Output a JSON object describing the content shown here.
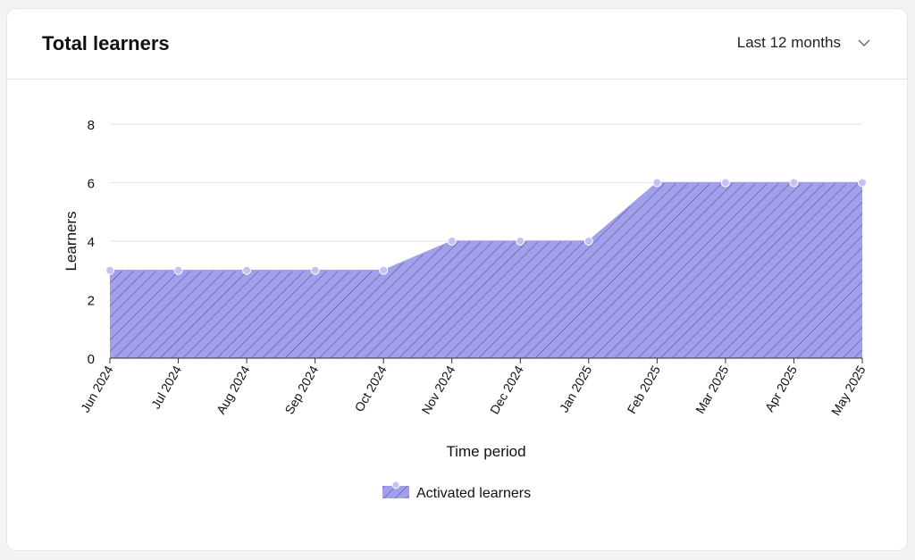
{
  "header": {
    "title": "Total learners",
    "range_selector": {
      "value": "Last 12 months",
      "icon": "chevron-down-icon"
    }
  },
  "chart_data": {
    "type": "area",
    "title": "",
    "xlabel": "Time period",
    "ylabel": "Learners",
    "ylim": [
      0,
      8
    ],
    "yticks": [
      0,
      2,
      4,
      6,
      8
    ],
    "grid": true,
    "legend_position": "bottom",
    "categories": [
      "Jun 2024",
      "Jul 2024",
      "Aug 2024",
      "Sep 2024",
      "Oct 2024",
      "Nov 2024",
      "Dec 2024",
      "Jan 2025",
      "Feb 2025",
      "Mar 2025",
      "Apr 2025",
      "May 2025"
    ],
    "series": [
      {
        "name": "Activated learners",
        "values": [
          3,
          3,
          3,
          3,
          3,
          4,
          4,
          4,
          6,
          6,
          6,
          6
        ],
        "color": "#a3a0ea",
        "hatch_color": "#5550b0",
        "point_color": "#c5c2f3"
      }
    ]
  }
}
